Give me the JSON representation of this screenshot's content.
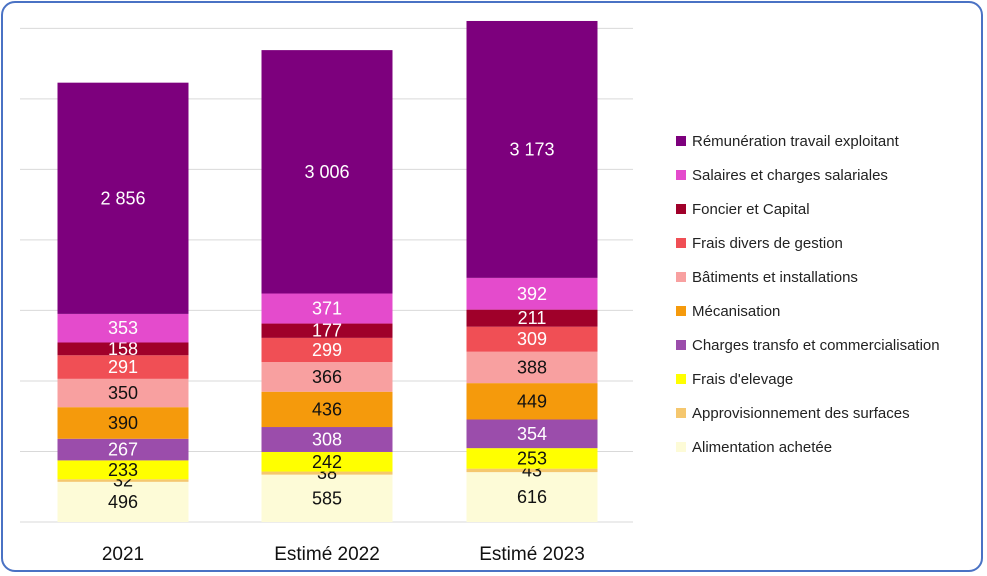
{
  "chart_data": {
    "type": "bar",
    "stacked": true,
    "categories": [
      "2021",
      "Estimé 2022",
      "Estimé 2023"
    ],
    "ylim": [
      0,
      6200
    ],
    "grid": true,
    "legend_position": "right",
    "series": [
      {
        "name": "Alimentation achetée",
        "color": "#fdfbd7",
        "values": [
          496,
          585,
          616
        ],
        "labels": [
          "496",
          "585",
          "616"
        ]
      },
      {
        "name": "Approvisionnement des surfaces",
        "color": "#f5c76e",
        "values": [
          32,
          38,
          43
        ],
        "labels": [
          "32",
          "38",
          "43"
        ]
      },
      {
        "name": "Frais d'elevage",
        "color": "#ffff00",
        "values": [
          233,
          242,
          253
        ],
        "labels": [
          "233",
          "242",
          "253"
        ]
      },
      {
        "name": "Charges transfo et commercialisation",
        "color": "#9b4dab",
        "values": [
          267,
          308,
          354
        ],
        "labels": [
          "267",
          "308",
          "354"
        ]
      },
      {
        "name": "Mécanisation",
        "color": "#f59a0c",
        "values": [
          390,
          436,
          449
        ],
        "labels": [
          "390",
          "436",
          "449"
        ]
      },
      {
        "name": "Bâtiments et installations",
        "color": "#f8a0a0",
        "values": [
          350,
          366,
          388
        ],
        "labels": [
          "350",
          "366",
          "388"
        ]
      },
      {
        "name": "Frais divers de gestion",
        "color": "#f04f55",
        "values": [
          291,
          299,
          309
        ],
        "labels": [
          "291",
          "299",
          "309"
        ]
      },
      {
        "name": "Foncier et Capital",
        "color": "#a0002a",
        "values": [
          158,
          177,
          211
        ],
        "labels": [
          "158",
          "177",
          "211"
        ]
      },
      {
        "name": "Salaires et charges salariales",
        "color": "#e44bcc",
        "values": [
          353,
          371,
          392
        ],
        "labels": [
          "353",
          "371",
          "392"
        ]
      },
      {
        "name": "Rémunération travail exploitant",
        "color": "#7d007d",
        "values": [
          2856,
          3006,
          3173
        ],
        "labels": [
          "2 856",
          "3 006",
          "3 173"
        ]
      }
    ]
  }
}
